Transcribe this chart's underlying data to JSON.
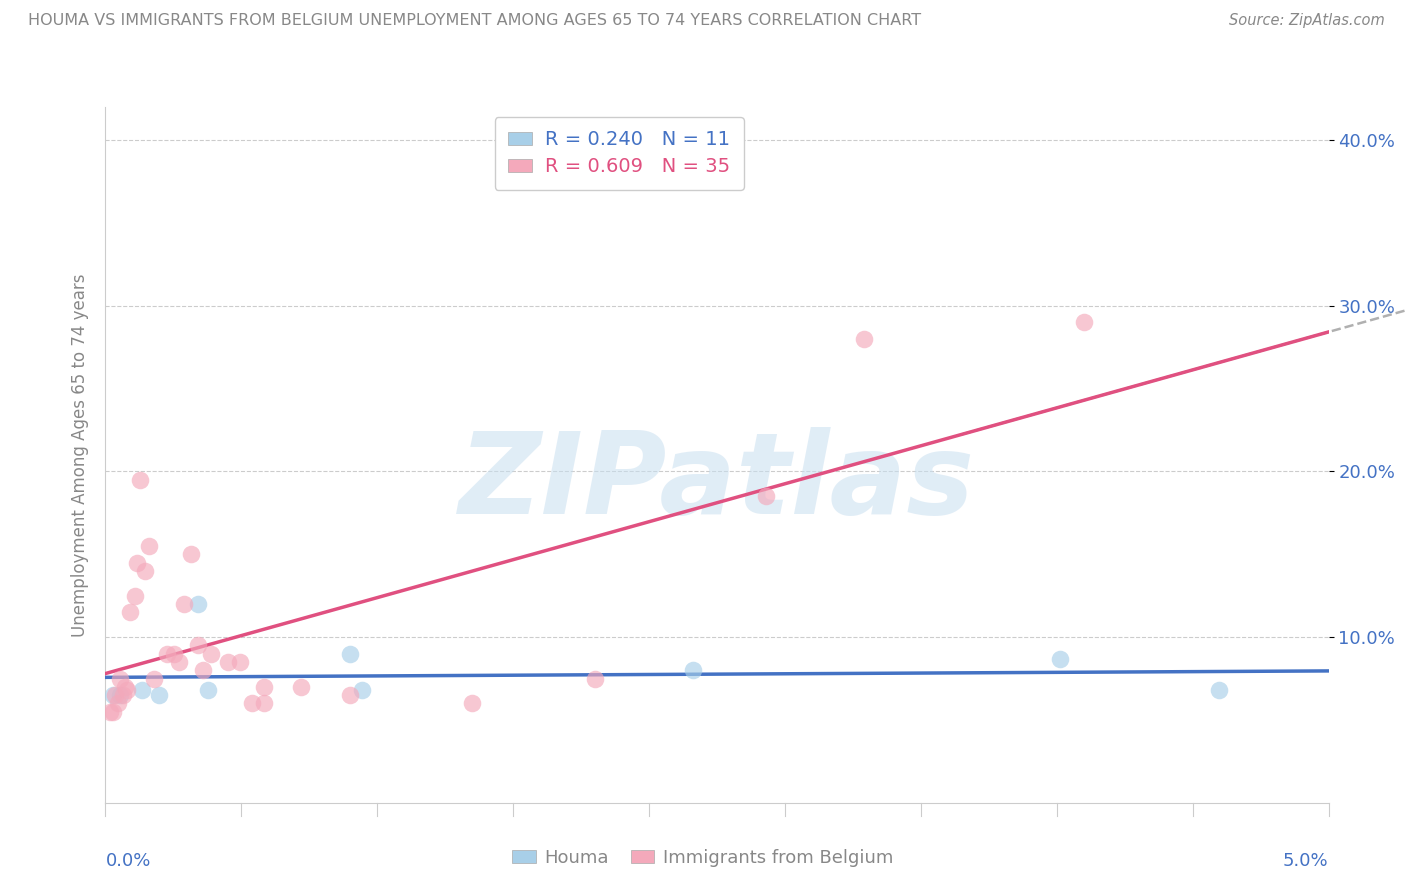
{
  "title": "HOUMA VS IMMIGRANTS FROM BELGIUM UNEMPLOYMENT AMONG AGES 65 TO 74 YEARS CORRELATION CHART",
  "source": "Source: ZipAtlas.com",
  "ylabel": "Unemployment Among Ages 65 to 74 years",
  "xmin": 0.0,
  "xmax": 0.05,
  "ymin": 0.0,
  "ymax": 0.42,
  "yticks": [
    0.1,
    0.2,
    0.3,
    0.4
  ],
  "ytick_labels": [
    "10.0%",
    "20.0%",
    "30.0%",
    "40.0%"
  ],
  "houma_color": "#a8cfe8",
  "belgium_color": "#f4a9bb",
  "houma_line_color": "#4472c4",
  "belgium_line_color": "#e05080",
  "houma_R": 0.24,
  "houma_N": 11,
  "belgium_R": 0.609,
  "belgium_N": 35,
  "watermark": "ZIPatlas",
  "houma_x": [
    0.0003,
    0.0006,
    0.0015,
    0.0022,
    0.0038,
    0.0042,
    0.01,
    0.0105,
    0.024,
    0.039,
    0.0455
  ],
  "houma_y": [
    0.065,
    0.065,
    0.068,
    0.065,
    0.12,
    0.068,
    0.09,
    0.068,
    0.08,
    0.087,
    0.068
  ],
  "belgium_x": [
    0.0002,
    0.0003,
    0.0004,
    0.0005,
    0.0006,
    0.0007,
    0.0008,
    0.0009,
    0.001,
    0.0012,
    0.0013,
    0.0014,
    0.0016,
    0.0018,
    0.002,
    0.0025,
    0.0028,
    0.003,
    0.0032,
    0.0035,
    0.0038,
    0.004,
    0.0043,
    0.005,
    0.0055,
    0.006,
    0.0065,
    0.0065,
    0.008,
    0.01,
    0.015,
    0.02,
    0.027,
    0.031,
    0.04
  ],
  "belgium_y": [
    0.055,
    0.055,
    0.065,
    0.06,
    0.075,
    0.065,
    0.07,
    0.068,
    0.115,
    0.125,
    0.145,
    0.195,
    0.14,
    0.155,
    0.075,
    0.09,
    0.09,
    0.085,
    0.12,
    0.15,
    0.095,
    0.08,
    0.09,
    0.085,
    0.085,
    0.06,
    0.06,
    0.07,
    0.07,
    0.065,
    0.06,
    0.075,
    0.185,
    0.28,
    0.29
  ]
}
